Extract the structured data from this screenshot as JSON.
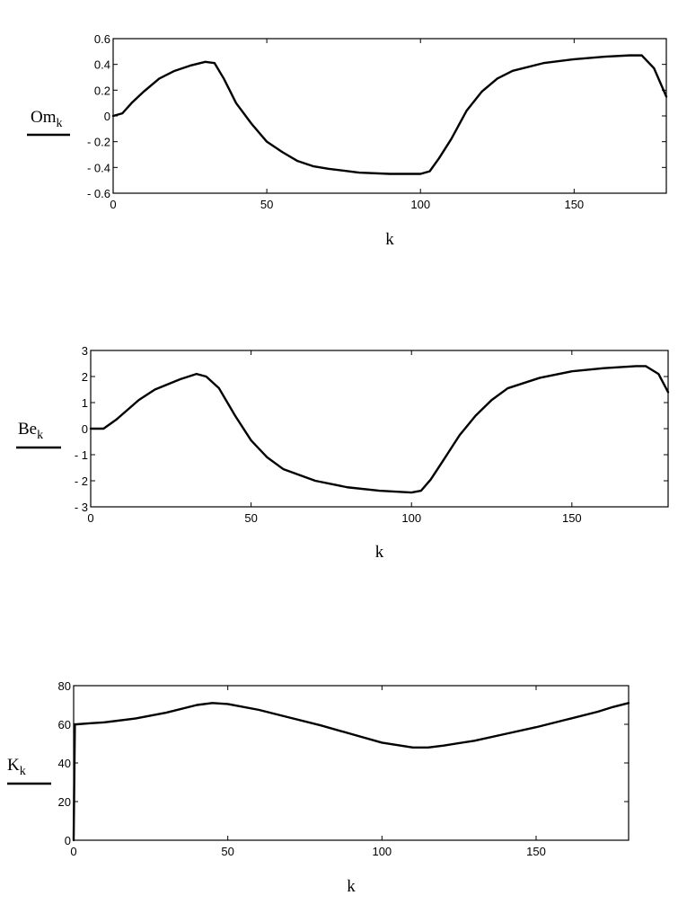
{
  "chart_data": [
    {
      "type": "line",
      "xlabel": "k",
      "ylabel": "Om",
      "ylabel_subscript": "k",
      "xlim": [
        0,
        180
      ],
      "ylim": [
        -0.6,
        0.6
      ],
      "xticks": [
        0,
        50,
        100,
        150
      ],
      "yticks": [
        -0.6,
        -0.4,
        -0.2,
        0,
        0.2,
        0.4,
        0.6
      ],
      "ytick_labels": [
        "- 0.6",
        "- 0.4",
        "- 0.2",
        "0",
        "0.2",
        "0.4",
        "0.6"
      ],
      "grid": false,
      "series": [
        {
          "x": [
            0,
            3,
            6,
            10,
            15,
            20,
            25,
            30,
            33,
            36,
            40,
            45,
            50,
            55,
            60,
            65,
            70,
            80,
            90,
            100,
            103,
            106,
            110,
            115,
            120,
            125,
            130,
            140,
            150,
            160,
            168,
            172,
            176,
            180
          ],
          "values": [
            0,
            0.02,
            0.1,
            0.19,
            0.29,
            0.35,
            0.39,
            0.42,
            0.41,
            0.29,
            0.1,
            -0.06,
            -0.2,
            -0.28,
            -0.35,
            -0.39,
            -0.41,
            -0.44,
            -0.45,
            -0.45,
            -0.43,
            -0.33,
            -0.18,
            0.04,
            0.19,
            0.29,
            0.35,
            0.41,
            0.44,
            0.46,
            0.47,
            0.47,
            0.37,
            0.15
          ]
        }
      ]
    },
    {
      "type": "line",
      "xlabel": "k",
      "ylabel": "Be",
      "ylabel_subscript": "k",
      "xlim": [
        0,
        180
      ],
      "ylim": [
        -3,
        3
      ],
      "xticks": [
        0,
        50,
        100,
        150
      ],
      "yticks": [
        -3,
        -2,
        -1,
        0,
        1,
        2,
        3
      ],
      "ytick_labels": [
        "- 3",
        "- 2",
        "- 1",
        "0",
        "1",
        "2",
        "3"
      ],
      "grid": false,
      "series": [
        {
          "x": [
            0,
            4,
            8,
            15,
            20,
            28,
            33,
            36,
            40,
            45,
            50,
            55,
            60,
            70,
            80,
            90,
            100,
            103,
            106,
            110,
            115,
            120,
            125,
            130,
            140,
            150,
            160,
            170,
            173,
            177,
            180
          ],
          "values": [
            0,
            0,
            0.35,
            1.1,
            1.5,
            1.9,
            2.1,
            2.0,
            1.55,
            0.5,
            -0.45,
            -1.1,
            -1.55,
            -2.0,
            -2.25,
            -2.38,
            -2.45,
            -2.38,
            -1.95,
            -1.2,
            -0.25,
            0.5,
            1.1,
            1.55,
            1.95,
            2.2,
            2.32,
            2.4,
            2.4,
            2.1,
            1.4
          ]
        }
      ]
    },
    {
      "type": "line",
      "xlabel": "k",
      "ylabel": "K",
      "ylabel_subscript": "k",
      "xlim": [
        0,
        180
      ],
      "ylim": [
        0,
        80
      ],
      "xticks": [
        0,
        50,
        100,
        150
      ],
      "yticks": [
        0,
        20,
        40,
        60,
        80
      ],
      "ytick_labels": [
        "0",
        "20",
        "40",
        "60",
        "80"
      ],
      "grid": false,
      "series": [
        {
          "x": [
            0,
            0.4,
            1,
            5,
            10,
            20,
            30,
            40,
            45,
            50,
            60,
            70,
            80,
            90,
            100,
            110,
            115,
            120,
            130,
            140,
            150,
            160,
            170,
            175,
            180
          ],
          "values": [
            0,
            60,
            60,
            60.5,
            61,
            63,
            66,
            70,
            71,
            70.5,
            67.5,
            63.5,
            59.5,
            55,
            50.5,
            48,
            48,
            49,
            51.5,
            55,
            58.5,
            62.5,
            66.5,
            69,
            71
          ]
        }
      ]
    }
  ]
}
